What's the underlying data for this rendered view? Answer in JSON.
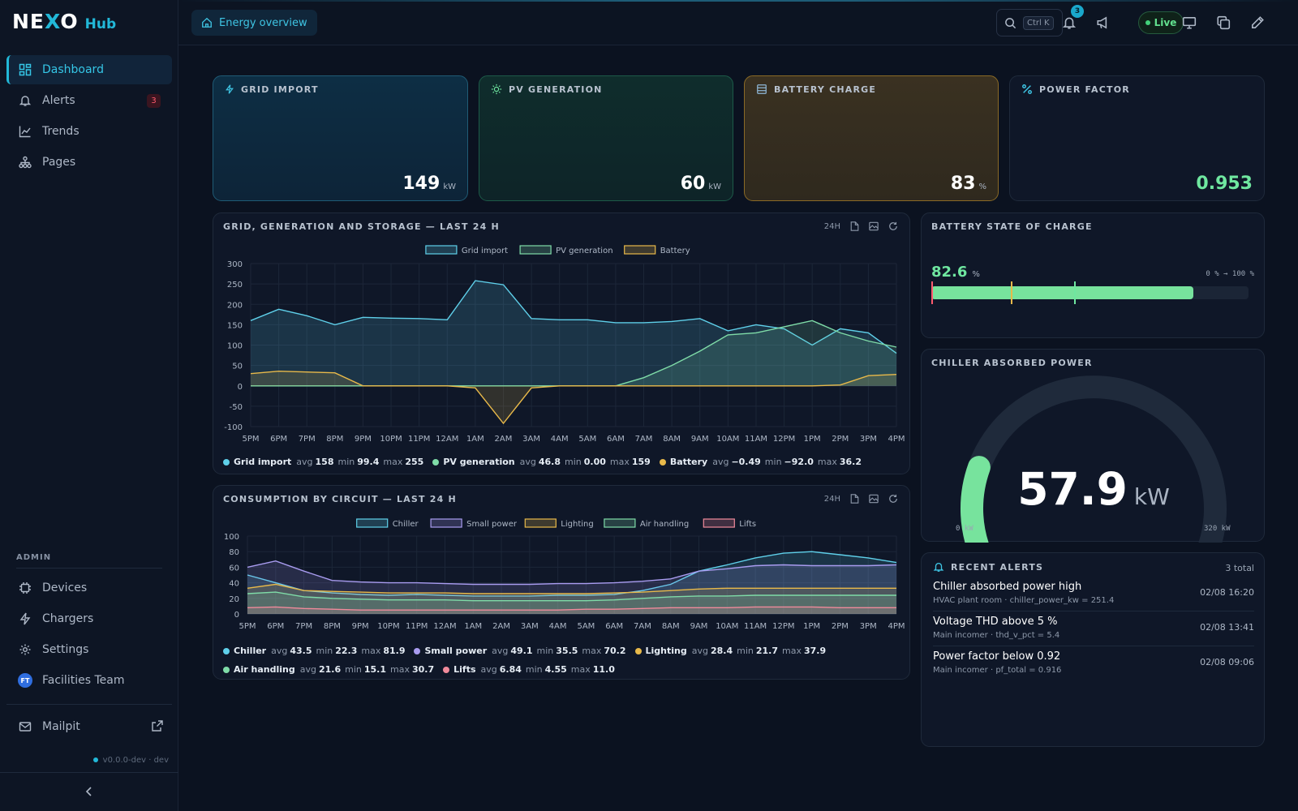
{
  "brand": {
    "logo_left": "NE",
    "logo_x": "X",
    "logo_right": "O",
    "sub": "Hub"
  },
  "sidebar": {
    "items": [
      {
        "label": "Dashboard",
        "icon": "dashboard-icon",
        "active": true
      },
      {
        "label": "Alerts",
        "icon": "bell-icon",
        "badge": "3"
      },
      {
        "label": "Trends",
        "icon": "trend-icon"
      },
      {
        "label": "Pages",
        "icon": "sitemap-icon"
      }
    ],
    "admin_label": "ADMIN",
    "admin_items": [
      {
        "label": "Devices",
        "icon": "chip-icon"
      },
      {
        "label": "Chargers",
        "icon": "bolt-icon"
      },
      {
        "label": "Settings",
        "icon": "gear-icon"
      },
      {
        "label": "Facilities Team",
        "avatar": "FT"
      }
    ],
    "mailpit": "Mailpit",
    "version": "v0.0.0-dev · dev"
  },
  "topbar": {
    "breadcrumb": "Energy overview",
    "search_kbd": "Ctrl K",
    "notifications": "3",
    "live": "Live"
  },
  "stats": [
    {
      "label": "GRID IMPORT",
      "value": "149",
      "unit": "kW",
      "icon": "bolt-icon"
    },
    {
      "label": "PV GENERATION",
      "value": "60",
      "unit": "kW",
      "icon": "sun-icon"
    },
    {
      "label": "BATTERY CHARGE",
      "value": "83",
      "unit": "%",
      "icon": "battery-icon"
    },
    {
      "label": "POWER FACTOR",
      "value": "0.953",
      "unit": "",
      "icon": "percent-icon"
    }
  ],
  "panel1": {
    "title": "GRID, GENERATION AND STORAGE — LAST 24 H",
    "range": "24H"
  },
  "panel2": {
    "title": "CONSUMPTION BY CIRCUIT — LAST 24 H",
    "range": "24H"
  },
  "chart_labels": {
    "avg": "avg",
    "min": "min",
    "max": "max"
  },
  "chart_data": [
    {
      "type": "area",
      "title": "GRID, GENERATION AND STORAGE — LAST 24 H",
      "x": [
        "5PM",
        "6PM",
        "7PM",
        "8PM",
        "9PM",
        "10PM",
        "11PM",
        "12AM",
        "1AM",
        "2AM",
        "3AM",
        "4AM",
        "5AM",
        "6AM",
        "7AM",
        "8AM",
        "9AM",
        "10AM",
        "11AM",
        "12PM",
        "1PM",
        "2PM",
        "3PM",
        "4PM"
      ],
      "ylim": [
        -100,
        300
      ],
      "yticks": [
        300,
        250,
        200,
        150,
        100,
        50,
        0,
        -50,
        -100
      ],
      "grid": true,
      "legend": "top-center",
      "series": [
        {
          "name": "Grid import",
          "color": "#5fd0ea",
          "values": [
            160,
            188,
            172,
            150,
            168,
            166,
            165,
            162,
            258,
            248,
            165,
            162,
            162,
            155,
            155,
            158,
            165,
            135,
            150,
            140,
            100,
            140,
            130,
            80
          ],
          "stats": {
            "avg": "158",
            "min": "99.4",
            "max": "255"
          }
        },
        {
          "name": "PV generation",
          "color": "#7fdca8",
          "values": [
            0,
            0,
            0,
            0,
            0,
            0,
            0,
            0,
            0,
            0,
            0,
            0,
            0,
            0,
            20,
            50,
            85,
            125,
            130,
            145,
            160,
            130,
            110,
            95
          ],
          "stats": {
            "avg": "46.8",
            "min": "0.00",
            "max": "159"
          }
        },
        {
          "name": "Battery",
          "color": "#e8b94a",
          "values": [
            30,
            36,
            34,
            32,
            0,
            0,
            0,
            0,
            -5,
            -92,
            -5,
            0,
            0,
            0,
            0,
            0,
            0,
            0,
            0,
            0,
            0,
            2,
            25,
            28
          ],
          "stats": {
            "avg": "−0.49",
            "min": "−92.0",
            "max": "36.2"
          }
        }
      ]
    },
    {
      "type": "area",
      "title": "CONSUMPTION BY CIRCUIT — LAST 24 H",
      "x": [
        "5PM",
        "6PM",
        "7PM",
        "8PM",
        "9PM",
        "10PM",
        "11PM",
        "12AM",
        "1AM",
        "2AM",
        "3AM",
        "4AM",
        "5AM",
        "6AM",
        "7AM",
        "8AM",
        "9AM",
        "10AM",
        "11AM",
        "12PM",
        "1PM",
        "2PM",
        "3PM",
        "4PM"
      ],
      "ylim": [
        0,
        100
      ],
      "yticks": [
        100,
        80,
        60,
        40,
        20,
        0
      ],
      "grid": true,
      "legend": "top-center",
      "series": [
        {
          "name": "Chiller",
          "color": "#5fd0ea",
          "values": [
            50,
            40,
            30,
            27,
            25,
            24,
            25,
            24,
            23,
            23,
            23,
            24,
            24,
            25,
            30,
            38,
            55,
            63,
            72,
            78,
            80,
            76,
            72,
            66
          ],
          "stats": {
            "avg": "43.5",
            "min": "22.3",
            "max": "81.9"
          }
        },
        {
          "name": "Small power",
          "color": "#a99cf0",
          "values": [
            60,
            68,
            55,
            43,
            41,
            40,
            40,
            39,
            38,
            38,
            38,
            39,
            39,
            40,
            42,
            45,
            55,
            58,
            62,
            63,
            62,
            62,
            62,
            63
          ],
          "stats": {
            "avg": "49.1",
            "min": "35.5",
            "max": "70.2"
          }
        },
        {
          "name": "Lighting",
          "color": "#e8b94a",
          "values": [
            33,
            38,
            30,
            29,
            28,
            27,
            27,
            27,
            26,
            26,
            26,
            26,
            26,
            27,
            28,
            30,
            32,
            33,
            33,
            33,
            33,
            33,
            33,
            33
          ],
          "stats": {
            "avg": "28.4",
            "min": "21.7",
            "max": "37.9"
          }
        },
        {
          "name": "Air handling",
          "color": "#7fdca8",
          "values": [
            26,
            28,
            22,
            20,
            19,
            18,
            18,
            18,
            17,
            17,
            17,
            17,
            17,
            18,
            20,
            22,
            23,
            23,
            24,
            24,
            24,
            24,
            24,
            24
          ],
          "stats": {
            "avg": "21.6",
            "min": "15.1",
            "max": "30.7"
          }
        },
        {
          "name": "Lifts",
          "color": "#f08a9b",
          "values": [
            8,
            9,
            7,
            6,
            5,
            5,
            5,
            5,
            5,
            5,
            5,
            5,
            6,
            6,
            7,
            8,
            8,
            8,
            9,
            9,
            9,
            8,
            8,
            8
          ],
          "stats": {
            "avg": "6.84",
            "min": "4.55",
            "max": "11.0"
          }
        }
      ]
    }
  ],
  "battery_soc": {
    "title": "BATTERY STATE OF CHARGE",
    "value": "82.6",
    "unit": "%",
    "range": "0 % → 100 %",
    "fraction": 0.826,
    "markers": [
      0.0,
      0.25,
      0.45
    ]
  },
  "chiller": {
    "title": "CHILLER ABSORBED POWER",
    "value": "57.9",
    "unit": "kW",
    "min_label": "0 kW",
    "max_label": "320 kW",
    "fraction": 0.181
  },
  "alerts": {
    "title": "RECENT ALERTS",
    "count": "3 total",
    "items": [
      {
        "title": "Chiller absorbed power high",
        "sub": "HVAC plant room · chiller_power_kw = 251.4",
        "date": "02/08 16:20"
      },
      {
        "title": "Voltage THD above 5 %",
        "sub": "Main incomer · thd_v_pct = 5.4",
        "date": "02/08 13:41"
      },
      {
        "title": "Power factor below 0.92",
        "sub": "Main incomer · pf_total = 0.916",
        "date": "02/08 09:06"
      }
    ]
  },
  "colors": {
    "accent": "#22b8d8",
    "green": "#6fe7a0",
    "amber": "#e8b94a",
    "danger": "#ff5a6e"
  }
}
